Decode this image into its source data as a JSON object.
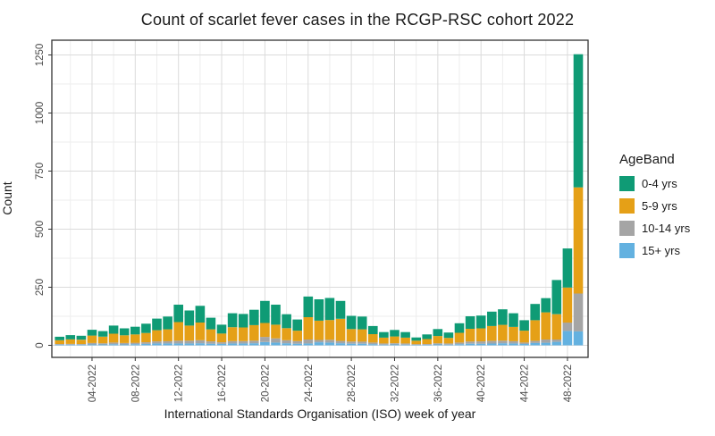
{
  "chart_data": {
    "type": "bar",
    "stacked": true,
    "stack_order": "first_series_on_top",
    "title": "Count of scarlet fever cases in the RCGP-RSC cohort 2022",
    "xlabel": "International Standards Organisation (ISO) week of year",
    "ylabel": "Count",
    "legend_title": "AgeBand",
    "legend_position": "right",
    "grid": true,
    "ylim": [
      0,
      1250
    ],
    "y_ticks": [
      0,
      250,
      500,
      750,
      1000,
      1250
    ],
    "y_minor_ticks": [
      125,
      375,
      625,
      875,
      1125
    ],
    "x_tick_weeks": [
      4,
      8,
      12,
      16,
      20,
      24,
      28,
      32,
      36,
      40,
      44,
      48
    ],
    "x_tick_labels": [
      "04-2022",
      "08-2022",
      "12-2022",
      "16-2022",
      "20-2022",
      "24-2022",
      "28-2022",
      "32-2022",
      "36-2022",
      "40-2022",
      "44-2022",
      "48-2022"
    ],
    "x_minor_weeks": [
      2,
      6,
      10,
      14,
      18,
      22,
      26,
      30,
      34,
      38,
      42,
      46
    ],
    "x": [
      "01-2022",
      "02-2022",
      "03-2022",
      "04-2022",
      "05-2022",
      "06-2022",
      "07-2022",
      "08-2022",
      "09-2022",
      "10-2022",
      "11-2022",
      "12-2022",
      "13-2022",
      "14-2022",
      "15-2022",
      "16-2022",
      "17-2022",
      "18-2022",
      "19-2022",
      "20-2022",
      "21-2022",
      "22-2022",
      "23-2022",
      "24-2022",
      "25-2022",
      "26-2022",
      "27-2022",
      "28-2022",
      "29-2022",
      "30-2022",
      "31-2022",
      "32-2022",
      "33-2022",
      "34-2022",
      "35-2022",
      "36-2022",
      "37-2022",
      "38-2022",
      "39-2022",
      "40-2022",
      "41-2022",
      "42-2022",
      "43-2022",
      "44-2022",
      "45-2022",
      "46-2022",
      "47-2022",
      "48-2022",
      "49-2022"
    ],
    "series": [
      {
        "name": "0-4 yrs",
        "color": "#0F9B75",
        "values": [
          15,
          18,
          17,
          25,
          24,
          35,
          30,
          33,
          40,
          50,
          55,
          75,
          65,
          72,
          50,
          38,
          60,
          58,
          66,
          95,
          86,
          60,
          48,
          89,
          92,
          95,
          77,
          57,
          55,
          35,
          24,
          28,
          24,
          14,
          20,
          30,
          23,
          41,
          54,
          55,
          62,
          67,
          59,
          45,
          70,
          61,
          147,
          168,
          573
        ]
      },
      {
        "name": "5-9 yrs",
        "color": "#E5A017",
        "values": [
          16,
          20,
          18,
          32,
          28,
          38,
          33,
          36,
          40,
          48,
          51,
          80,
          65,
          76,
          52,
          38,
          60,
          59,
          67,
          60,
          59,
          52,
          45,
          96,
          83,
          85,
          95,
          54,
          53,
          36,
          25,
          29,
          25,
          15,
          21,
          31,
          24,
          42,
          55,
          56,
          64,
          68,
          61,
          51,
          89,
          117,
          109,
          151,
          457
        ]
      },
      {
        "name": "10-14 yrs",
        "color": "#A5A5A5",
        "values": [
          3,
          3,
          3,
          6,
          5,
          7,
          6,
          6,
          7,
          9,
          10,
          12,
          12,
          13,
          10,
          7,
          10,
          10,
          11,
          22,
          18,
          13,
          11,
          17,
          10,
          12,
          10,
          9,
          9,
          7,
          5,
          5,
          5,
          3,
          4,
          5,
          5,
          7,
          9,
          10,
          11,
          11,
          10,
          6,
          9,
          14,
          10,
          36,
          163
        ]
      },
      {
        "name": "15+ yrs",
        "color": "#63B1E0",
        "values": [
          3,
          3,
          3,
          4,
          4,
          5,
          4,
          5,
          6,
          8,
          8,
          8,
          8,
          9,
          7,
          6,
          8,
          8,
          9,
          14,
          12,
          9,
          7,
          8,
          13,
          12,
          9,
          7,
          7,
          5,
          3,
          4,
          3,
          2,
          2,
          4,
          3,
          5,
          7,
          7,
          8,
          9,
          8,
          6,
          10,
          11,
          15,
          62,
          60
        ]
      }
    ]
  },
  "colors": {
    "panel_border": "#333333",
    "grid_major": "#DBDBDB",
    "grid_minor": "#EDEDED",
    "tick_text": "#4D4D4D",
    "title_text": "#1A1A1A"
  }
}
